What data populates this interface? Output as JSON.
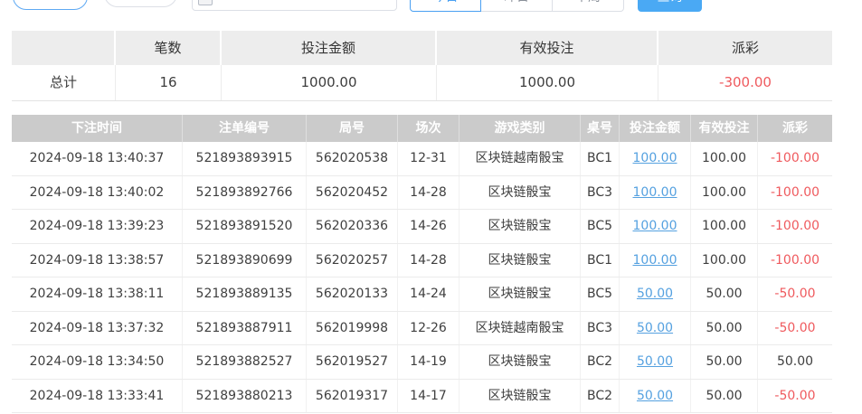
{
  "colors": {
    "accent_blue": "#4aa9f4",
    "link_blue": "#55a1e0",
    "negative_red": "#ef5a5e",
    "table_header_bg": "#cbcbcb",
    "summary_header_bg": "#ededed"
  },
  "toolbar": {
    "outline_button_label": "",
    "gray_button_label": "",
    "date_input_value": "",
    "segments": [
      {
        "label": "今日",
        "active": true
      },
      {
        "label": "昨日",
        "active": false
      },
      {
        "label": "本周",
        "active": false
      }
    ],
    "search_button_label": "查询"
  },
  "summary": {
    "columns": [
      "",
      "笔数",
      "投注金额",
      "有效投注",
      "派彩"
    ],
    "total": {
      "label": "总计",
      "count": "16",
      "bet_amount": "1000.00",
      "valid_bet": "1000.00",
      "payout": "-300.00"
    }
  },
  "table": {
    "columns": [
      "下注时间",
      "注单编号",
      "局号",
      "场次",
      "游戏类别",
      "桌号",
      "投注金额",
      "有效投注",
      "派彩"
    ],
    "rows": [
      {
        "time": "2024-09-18 13:40:37",
        "order_id": "521893893915",
        "round_no": "562020538",
        "session": "12-31",
        "game": "区块链越南骰宝",
        "table_no": "BC1",
        "bet": "100.00",
        "valid": "100.00",
        "payout": "-100.00"
      },
      {
        "time": "2024-09-18 13:40:02",
        "order_id": "521893892766",
        "round_no": "562020452",
        "session": "14-28",
        "game": "区块链骰宝",
        "table_no": "BC3",
        "bet": "100.00",
        "valid": "100.00",
        "payout": "-100.00"
      },
      {
        "time": "2024-09-18 13:39:23",
        "order_id": "521893891520",
        "round_no": "562020336",
        "session": "14-26",
        "game": "区块链骰宝",
        "table_no": "BC5",
        "bet": "100.00",
        "valid": "100.00",
        "payout": "-100.00"
      },
      {
        "time": "2024-09-18 13:38:57",
        "order_id": "521893890699",
        "round_no": "562020257",
        "session": "14-28",
        "game": "区块链骰宝",
        "table_no": "BC1",
        "bet": "100.00",
        "valid": "100.00",
        "payout": "-100.00"
      },
      {
        "time": "2024-09-18 13:38:11",
        "order_id": "521893889135",
        "round_no": "562020133",
        "session": "14-24",
        "game": "区块链骰宝",
        "table_no": "BC5",
        "bet": "50.00",
        "valid": "50.00",
        "payout": "-50.00"
      },
      {
        "time": "2024-09-18 13:37:32",
        "order_id": "521893887911",
        "round_no": "562019998",
        "session": "12-26",
        "game": "区块链越南骰宝",
        "table_no": "BC3",
        "bet": "50.00",
        "valid": "50.00",
        "payout": "-50.00"
      },
      {
        "time": "2024-09-18 13:34:50",
        "order_id": "521893882527",
        "round_no": "562019527",
        "session": "14-19",
        "game": "区块链骰宝",
        "table_no": "BC2",
        "bet": "50.00",
        "valid": "50.00",
        "payout": "50.00"
      },
      {
        "time": "2024-09-18 13:33:41",
        "order_id": "521893880213",
        "round_no": "562019317",
        "session": "14-17",
        "game": "区块链骰宝",
        "table_no": "BC2",
        "bet": "50.00",
        "valid": "50.00",
        "payout": "-50.00"
      }
    ]
  }
}
